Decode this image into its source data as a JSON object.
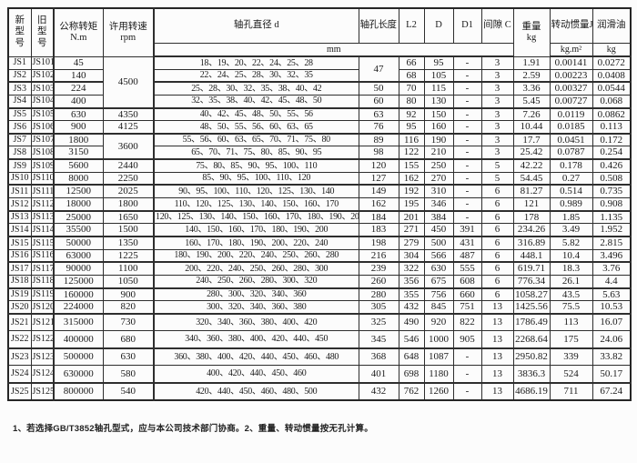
{
  "table": {
    "header": {
      "new_model": "新\n型\n号",
      "old_model": "旧\n型\n号",
      "torque": "公称转矩",
      "torque_unit": "N.m",
      "speed": "许用转速",
      "speed_unit": "rpm",
      "d": "轴孔直径 d",
      "L": "轴孔长度 L",
      "L2": "L2",
      "D": "D",
      "D1": "D1",
      "C": "间隙 C",
      "weight": "重量",
      "weight_unit": "kg",
      "inertia": "转动惯量J",
      "inertia_unit": "kg.m²",
      "oil": "润滑油",
      "oil_unit": "kg",
      "mm": "mm"
    },
    "rows": [
      {
        "new": "JS1",
        "old": "JS101",
        "torque": "45",
        "speed": "4500",
        "speed_span": 4,
        "d": "18、19、20、22、24、25、28",
        "L": "47",
        "L_span": 2,
        "L2": "66",
        "D": "95",
        "D1": "-",
        "C": "3",
        "weight": "1.91",
        "inertia": "0.00141",
        "oil": "0.0272"
      },
      {
        "new": "JS2",
        "old": "JS102",
        "torque": "140",
        "speed": null,
        "d": "22、24、25、28、30、32、35",
        "L": null,
        "L2": "68",
        "D": "105",
        "D1": "-",
        "C": "3",
        "weight": "2.59",
        "inertia": "0.00223",
        "oil": "0.0408"
      },
      {
        "new": "JS3",
        "old": "JS103",
        "torque": "224",
        "speed": null,
        "d": "25、28、30、32、35、38、40、42",
        "L": "50",
        "L2": "70",
        "D": "115",
        "D1": "-",
        "C": "3",
        "weight": "3.36",
        "inertia": "0.00327",
        "oil": "0.0544"
      },
      {
        "new": "JS4",
        "old": "JS104",
        "torque": "400",
        "speed": null,
        "d": "32、35、38、40、42、45、48、50",
        "L": "60",
        "L2": "80",
        "D": "130",
        "D1": "-",
        "C": "3",
        "weight": "5.45",
        "inertia": "0.00727",
        "oil": "0.068"
      },
      {
        "new": "JS5",
        "old": "JS105",
        "torque": "630",
        "speed": "4350",
        "d": "40、42、45、48、50、55、56",
        "L": "63",
        "L2": "92",
        "D": "150",
        "D1": "-",
        "C": "3",
        "weight": "7.26",
        "inertia": "0.0119",
        "oil": "0.0862"
      },
      {
        "new": "JS6",
        "old": "JS106",
        "torque": "900",
        "speed": "4125",
        "d": "48、50、55、56、60、63、65",
        "L": "76",
        "L2": "95",
        "D": "160",
        "D1": "-",
        "C": "3",
        "weight": "10.44",
        "inertia": "0.0185",
        "oil": "0.113"
      },
      {
        "new": "JS7",
        "old": "JS107",
        "torque": "1800",
        "speed": "3600",
        "speed_span": 2,
        "d": "55、56、60、63、65、70、71、75、80",
        "L": "89",
        "L2": "116",
        "D": "190",
        "D1": "-",
        "C": "3",
        "weight": "17.7",
        "inertia": "0.0451",
        "oil": "0.172"
      },
      {
        "new": "JS8",
        "old": "JS108",
        "torque": "3150",
        "speed": null,
        "d": "65、70、71、75、80、85、90、95",
        "L": "98",
        "L2": "122",
        "D": "210",
        "D1": "-",
        "C": "3",
        "weight": "25.42",
        "inertia": "0.0787",
        "oil": "0.254"
      },
      {
        "new": "JS9",
        "old": "JS109",
        "torque": "5600",
        "speed": "2440",
        "d": "75、80、85、90、95、100、110",
        "L": "120",
        "L2": "155",
        "D": "250",
        "D1": "-",
        "C": "5",
        "weight": "42.22",
        "inertia": "0.178",
        "oil": "0.426"
      },
      {
        "new": "JS10",
        "old": "JS110",
        "torque": "8000",
        "speed": "2250",
        "d": "85、90、95、100、110、120",
        "L": "127",
        "L2": "162",
        "D": "270",
        "D1": "-",
        "C": "5",
        "weight": "54.45",
        "inertia": "0.27",
        "oil": "0.508"
      },
      {
        "new": "JS11",
        "old": "JS111",
        "torque": "12500",
        "speed": "2025",
        "d": "90、95、100、110、120、125、130、140",
        "L": "149",
        "L2": "192",
        "D": "310",
        "D1": "-",
        "C": "6",
        "weight": "81.27",
        "inertia": "0.514",
        "oil": "0.735"
      },
      {
        "new": "JS12",
        "old": "JS112",
        "torque": "18000",
        "speed": "1800",
        "d": "110、120、125、130、140、150、160、170",
        "L": "162",
        "L2": "195",
        "D": "346",
        "D1": "-",
        "C": "6",
        "weight": "121",
        "inertia": "0.989",
        "oil": "0.908"
      },
      {
        "new": "JS13",
        "old": "JS113",
        "torque": "25000",
        "speed": "1650",
        "d": "120、125、130、140、150、160、170、180、190、200",
        "L": "184",
        "L2": "201",
        "D": "384",
        "D1": "-",
        "C": "6",
        "weight": "178",
        "inertia": "1.85",
        "oil": "1.135"
      },
      {
        "new": "JS14",
        "old": "JS114",
        "torque": "35500",
        "speed": "1500",
        "d": "140、150、160、170、180、190、200",
        "L": "183",
        "L2": "271",
        "D": "450",
        "D1": "391",
        "C": "6",
        "weight": "234.26",
        "inertia": "3.49",
        "oil": "1.952"
      },
      {
        "new": "JS15",
        "old": "JS115",
        "torque": "50000",
        "speed": "1350",
        "d": "160、170、180、190、200、220、240",
        "L": "198",
        "L2": "279",
        "D": "500",
        "D1": "431",
        "C": "6",
        "weight": "316.89",
        "inertia": "5.82",
        "oil": "2.815"
      },
      {
        "new": "JS16",
        "old": "JS116",
        "torque": "63000",
        "speed": "1225",
        "d": "180、190、200、220、240、250、260、280",
        "L": "216",
        "L2": "304",
        "D": "566",
        "D1": "487",
        "C": "6",
        "weight": "448.1",
        "inertia": "10.4",
        "oil": "3.496"
      },
      {
        "new": "JS17",
        "old": "JS117",
        "torque": "90000",
        "speed": "1100",
        "d": "200、220、240、250、260、280、300",
        "L": "239",
        "L2": "322",
        "D": "630",
        "D1": "555",
        "C": "6",
        "weight": "619.71",
        "inertia": "18.3",
        "oil": "3.76"
      },
      {
        "new": "JS18",
        "old": "JS118",
        "torque": "125000",
        "speed": "1050",
        "d": "240、250、260、280、300、320",
        "L": "260",
        "L2": "356",
        "D": "675",
        "D1": "608",
        "C": "6",
        "weight": "776.34",
        "inertia": "26.1",
        "oil": "4.4"
      },
      {
        "new": "JS19",
        "old": "JS119",
        "torque": "160000",
        "speed": "900",
        "d": "280、300、320、340、360",
        "L": "280",
        "L2": "355",
        "D": "756",
        "D1": "660",
        "C": "6",
        "weight": "1058.27",
        "inertia": "43.5",
        "oil": "5.63"
      },
      {
        "new": "JS20",
        "old": "JS120",
        "torque": "224000",
        "speed": "820",
        "d": "300、320、340、360、380",
        "L": "305",
        "L2": "432",
        "D": "845",
        "D1": "751",
        "C": "13",
        "weight": "1425.56",
        "inertia": "75.5",
        "oil": "10.53"
      },
      {
        "new": "JS21",
        "old": "JS121",
        "torque": "315000",
        "speed": "730",
        "d": "320、340、360、380、400、420",
        "L": "325",
        "L2": "490",
        "D": "920",
        "D1": "822",
        "C": "13",
        "weight": "1786.49",
        "inertia": "113",
        "oil": "16.07"
      },
      {
        "new": "JS22",
        "old": "JS122",
        "torque": "400000",
        "speed": "680",
        "d": "340、360、380、400、420、440、450",
        "L": "345",
        "L2": "546",
        "D": "1000",
        "D1": "905",
        "C": "13",
        "weight": "2268.64",
        "inertia": "175",
        "oil": "24.06"
      },
      {
        "new": "JS23",
        "old": "JS123",
        "torque": "500000",
        "speed": "630",
        "d": "360、380、400、420、440、450、460、480",
        "L": "368",
        "L2": "648",
        "D": "1087",
        "D1": "-",
        "C": "13",
        "weight": "2950.82",
        "inertia": "339",
        "oil": "33.82"
      },
      {
        "new": "JS24",
        "old": "JS124",
        "torque": "630000",
        "speed": "580",
        "d": "400、420、440、450、460",
        "L": "401",
        "L2": "698",
        "D": "1180",
        "D1": "-",
        "C": "13",
        "weight": "3836.3",
        "inertia": "524",
        "oil": "50.17"
      },
      {
        "new": "JS25",
        "old": "JS125",
        "torque": "800000",
        "speed": "540",
        "d": "420、440、450、460、480、500",
        "L": "432",
        "L2": "762",
        "D": "1260",
        "D1": "-",
        "C": "13",
        "weight": "4686.19",
        "inertia": "711",
        "oil": "67.24"
      }
    ],
    "note": "1、若选择GB/T3852轴孔型式，应与本公司技术部门协商。2、重量、转动惯量按无孔计算。"
  }
}
